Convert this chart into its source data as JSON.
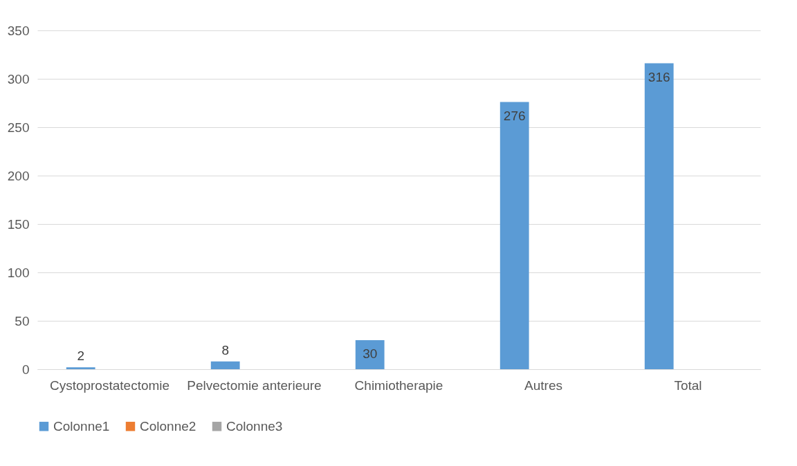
{
  "chart_data": {
    "type": "bar",
    "categories": [
      "Cystoprostatectomie",
      "Pelvectomie anterieure",
      "Chimiotherapie",
      "Autres",
      "Total"
    ],
    "series": [
      {
        "name": "Colonne1",
        "color": "#5b9bd5",
        "values": [
          2,
          8,
          30,
          276,
          316
        ]
      },
      {
        "name": "Colonne2",
        "color": "#ed7d31",
        "values": [
          null,
          null,
          null,
          null,
          null
        ]
      },
      {
        "name": "Colonne3",
        "color": "#a5a5a5",
        "values": [
          null,
          null,
          null,
          null,
          null
        ]
      }
    ],
    "ylim": [
      0,
      350
    ],
    "yticks": [
      0,
      50,
      100,
      150,
      200,
      250,
      300,
      350
    ],
    "grid": "y",
    "legend": "bottom",
    "data_labels": true
  }
}
